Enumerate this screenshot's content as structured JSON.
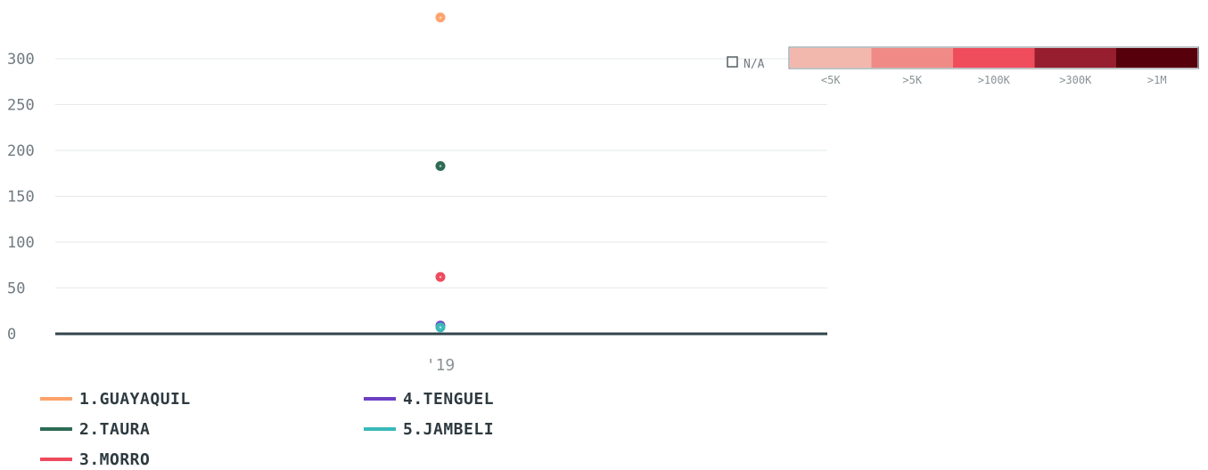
{
  "chart_data": {
    "type": "scatter",
    "x_categories": [
      "'19"
    ],
    "y_ticks": [
      0,
      50,
      100,
      150,
      200,
      250,
      300
    ],
    "ylim": [
      0,
      350
    ],
    "grid": true,
    "series": [
      {
        "name": "1.GUAYAQUIL",
        "color": "#ffa26b",
        "points": [
          {
            "x": "'19",
            "y": 345
          }
        ]
      },
      {
        "name": "2.TAURA",
        "color": "#2e6b55",
        "points": [
          {
            "x": "'19",
            "y": 183
          }
        ]
      },
      {
        "name": "3.MORRO",
        "color": "#ee4a5e",
        "points": [
          {
            "x": "'19",
            "y": 62
          }
        ]
      },
      {
        "name": "4.TENGUEL",
        "color": "#6c3fc4",
        "points": [
          {
            "x": "'19",
            "y": 9
          }
        ]
      },
      {
        "name": "5.JAMBELI",
        "color": "#3bb8b8",
        "points": [
          {
            "x": "'19",
            "y": 7
          }
        ]
      }
    ],
    "color_scale": {
      "na_label": "N/A",
      "bins": [
        {
          "label": "<5K",
          "color": "#f3b8ad"
        },
        {
          "label": ">5K",
          "color": "#ef8a86"
        },
        {
          "label": ">100K",
          "color": "#ef4c5c"
        },
        {
          "label": ">300K",
          "color": "#961e2e"
        },
        {
          "label": ">1M",
          "color": "#56000c"
        }
      ]
    }
  }
}
